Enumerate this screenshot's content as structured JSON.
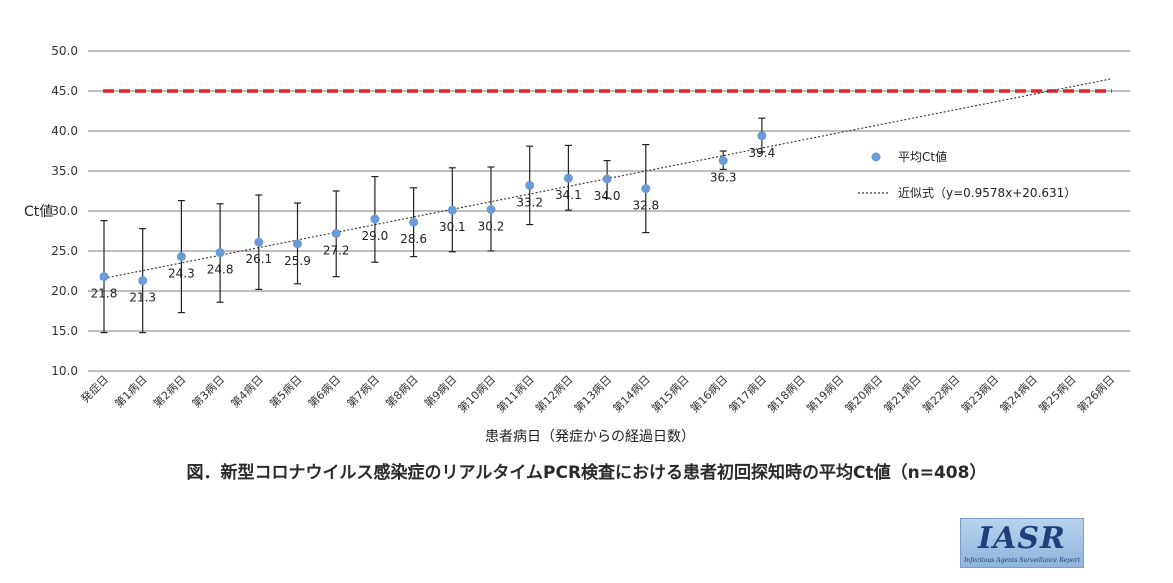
{
  "chart_data": {
    "type": "scatter",
    "ylabel": "Ct値",
    "xlabel": "患者病日（発症からの経過日数）",
    "ylim": [
      10,
      50
    ],
    "yticks": [
      "10.0",
      "15.0",
      "20.0",
      "25.0",
      "30.0",
      "35.0",
      "40.0",
      "45.0",
      "50.0"
    ],
    "grid": true,
    "legend_placement": "right",
    "categories": [
      "発症日",
      "第1病日",
      "第2病日",
      "第3病日",
      "第4病日",
      "第5病日",
      "第6病日",
      "第7病日",
      "第8病日",
      "第9病日",
      "第10病日",
      "第11病日",
      "第12病日",
      "第13病日",
      "第14病日",
      "第15病日",
      "第16病日",
      "第17病日",
      "第18病日",
      "第19病日",
      "第20病日",
      "第21病日",
      "第22病日",
      "第23病日",
      "第24病日",
      "第25病日",
      "第26病日"
    ],
    "series": [
      {
        "name": "平均Ct値",
        "color": "#6b9ad6",
        "values": [
          21.8,
          21.3,
          24.3,
          24.8,
          26.1,
          25.9,
          27.2,
          29.0,
          28.6,
          30.1,
          30.2,
          33.2,
          34.1,
          34.0,
          32.8,
          null,
          36.3,
          39.4,
          null,
          null,
          null,
          null,
          null,
          null,
          null,
          null,
          null
        ],
        "labels": [
          "21.8",
          "21.3",
          "24.3",
          "24.8",
          "26.1",
          "25.9",
          "27.2",
          "29.0",
          "28.6",
          "30.1",
          "30.2",
          "33.2",
          "34.1",
          "34.0",
          "32.8",
          "",
          "36.3",
          "39.4",
          "",
          "",
          "",
          "",
          "",
          "",
          "",
          "",
          ""
        ],
        "error_low": [
          14.8,
          14.8,
          17.3,
          18.6,
          20.2,
          20.9,
          21.8,
          23.6,
          24.3,
          24.9,
          25.0,
          28.3,
          30.1,
          31.6,
          27.3,
          null,
          35.2,
          37.4,
          null,
          null,
          null,
          null,
          null,
          null,
          null,
          null,
          null
        ],
        "error_high": [
          28.8,
          27.8,
          31.3,
          30.9,
          32.0,
          31.0,
          32.5,
          34.3,
          32.9,
          35.4,
          35.5,
          38.1,
          38.2,
          36.3,
          38.3,
          null,
          37.5,
          41.6,
          null,
          null,
          null,
          null,
          null,
          null,
          null,
          null,
          null
        ]
      }
    ],
    "trendline": {
      "name": "近似式（y=0.9578x+20.631）",
      "slope": 0.9578,
      "intercept": 20.631
    },
    "reference_line": {
      "value": 45.0,
      "color": "#e0262a"
    }
  },
  "caption": "図．新型コロナウイルス感染症のリアルタイムPCR検査における患者初回探知時の平均Ct値（n=408）",
  "logo": {
    "main": "IASR",
    "sub": "Infectious Agents Surveillance Report"
  }
}
